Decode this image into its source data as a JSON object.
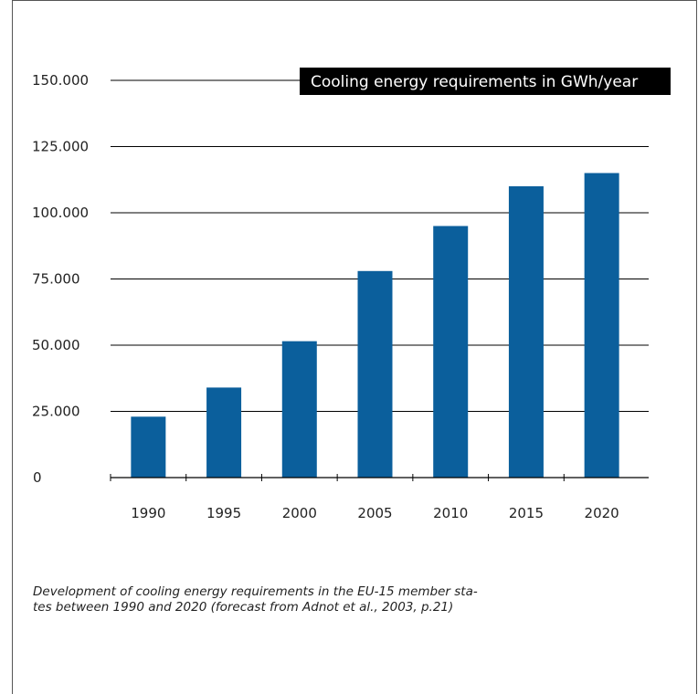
{
  "chart_data": {
    "type": "bar",
    "title": "Cooling energy requirements in GWh/year",
    "categories": [
      "1990",
      "1995",
      "2000",
      "2005",
      "2010",
      "2015",
      "2020"
    ],
    "values": [
      23000,
      34000,
      51500,
      78000,
      95000,
      110000,
      115000
    ],
    "yticks": [
      "0",
      "25.000",
      "50.000",
      "75.000",
      "100.000",
      "125.000",
      "150.000"
    ],
    "ytick_values": [
      0,
      25000,
      50000,
      75000,
      100000,
      125000,
      150000
    ],
    "ylim": [
      0,
      150000
    ],
    "xlabel": "",
    "ylabel": "",
    "grid": true,
    "bar_color": "#0b5f9c"
  },
  "caption": "Development of cooling energy requirements in the EU-15 member sta-\ntes between 1990 and 2020 (forecast from Adnot et al., 2003, p.21)"
}
